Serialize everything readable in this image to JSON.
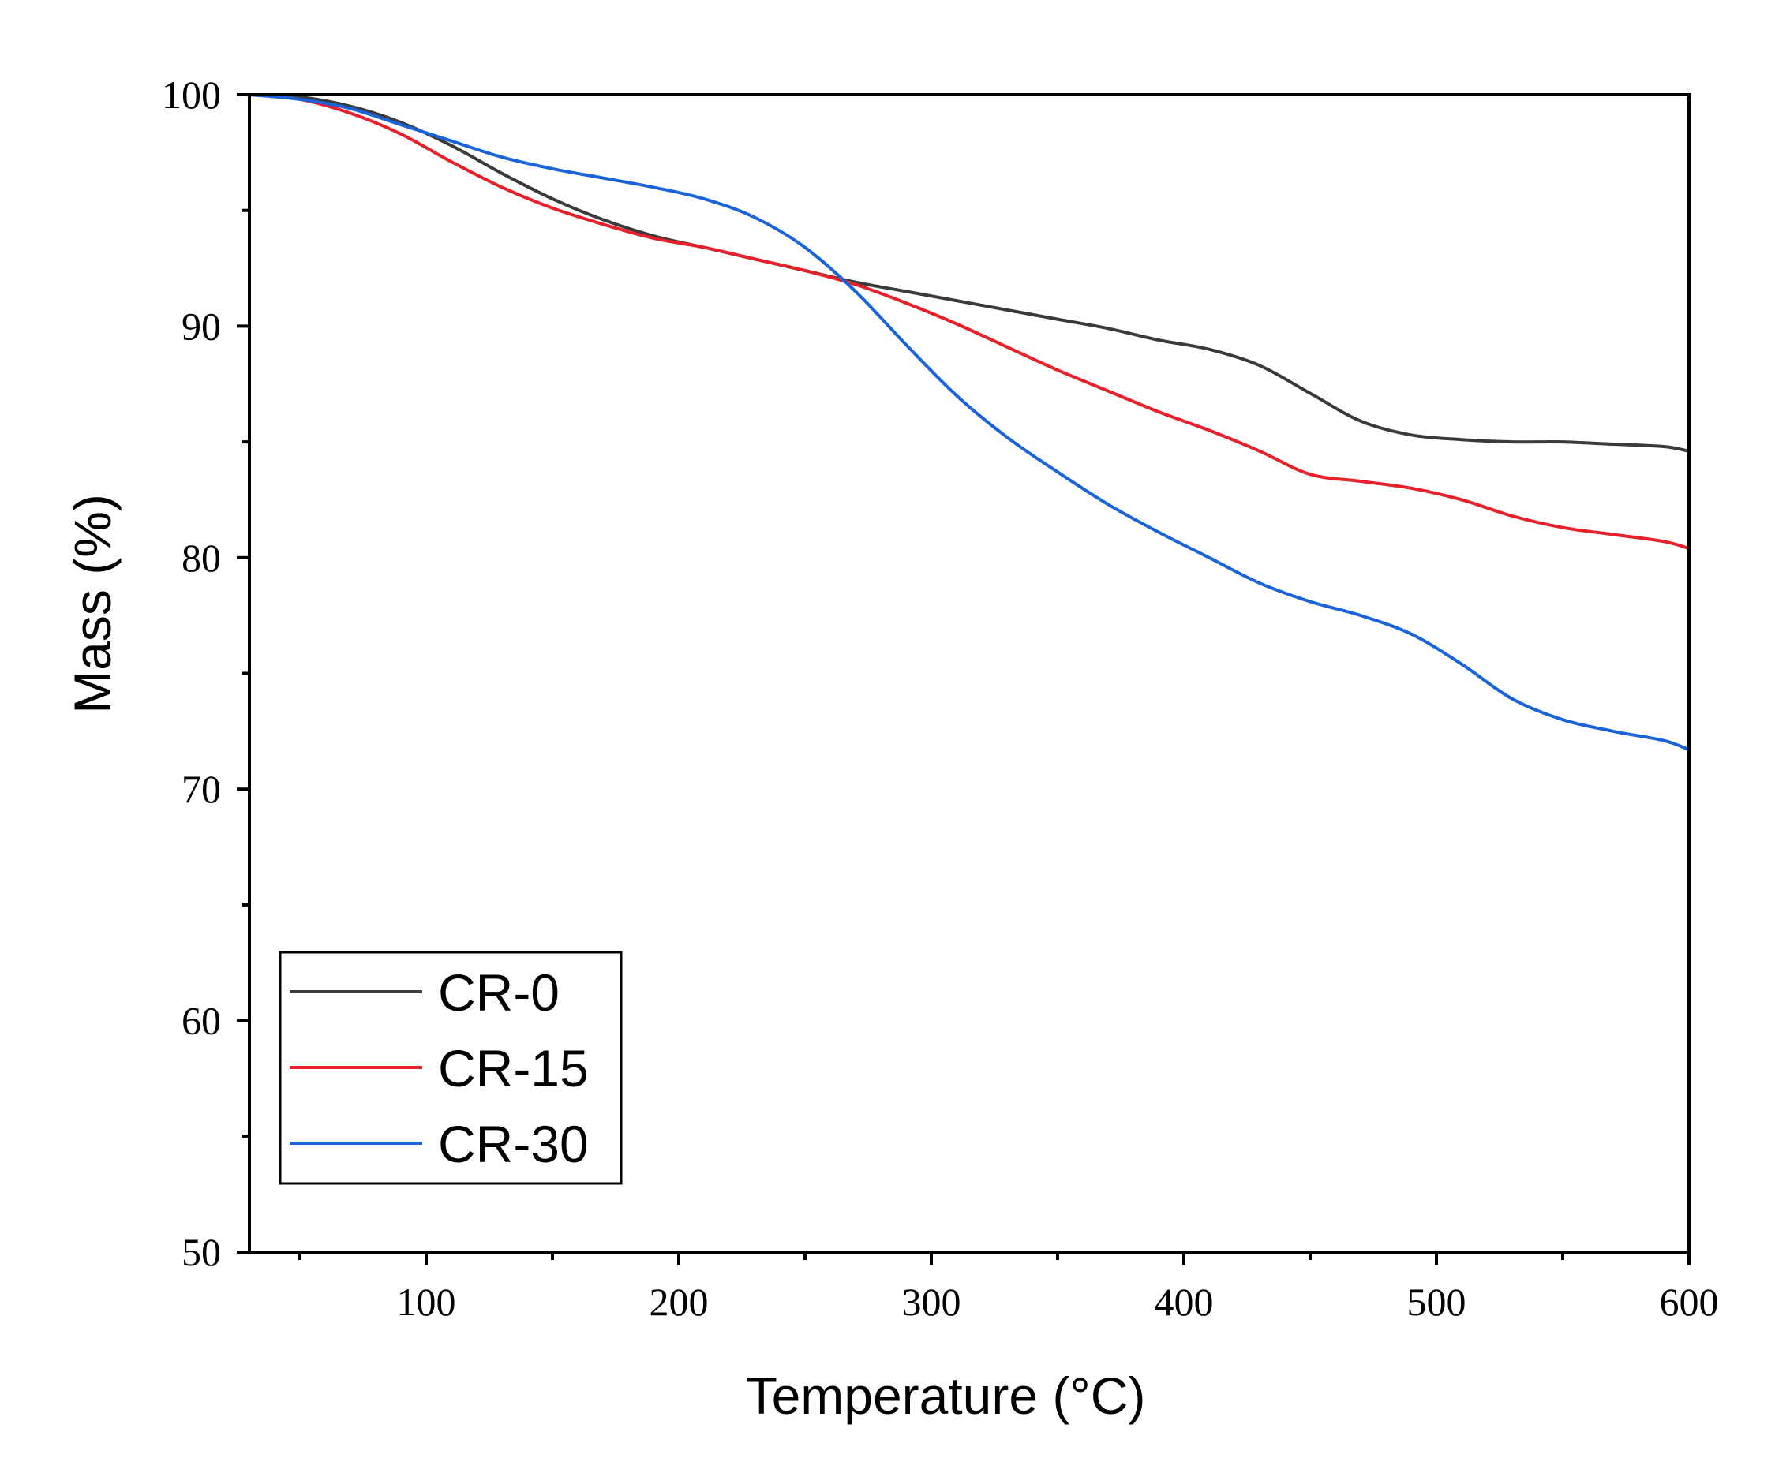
{
  "chart_data": {
    "type": "line",
    "title": "",
    "xlabel": "Temperature (°C)",
    "ylabel": "Mass (%)",
    "xlim": [
      30,
      600
    ],
    "ylim": [
      50,
      100
    ],
    "x_ticks": [
      100,
      200,
      300,
      400,
      500,
      600
    ],
    "x_minor_ticks": [
      50,
      150,
      250,
      350,
      450,
      550
    ],
    "x_tick_labels": [
      "100",
      "200",
      "300",
      "400",
      "500",
      "600"
    ],
    "y_ticks": [
      50,
      60,
      70,
      80,
      90,
      100
    ],
    "y_minor_ticks": [
      55,
      65,
      75,
      85,
      95
    ],
    "y_tick_labels": [
      "50",
      "60",
      "70",
      "80",
      "90",
      "100"
    ],
    "grid": false,
    "legend_position": "bottom-left",
    "series": [
      {
        "name": "CR-0",
        "color": "#3a3a3a",
        "x": [
          30,
          50,
          70,
          90,
          110,
          130,
          150,
          170,
          190,
          210,
          230,
          250,
          270,
          290,
          310,
          330,
          350,
          370,
          390,
          410,
          430,
          450,
          470,
          490,
          510,
          530,
          550,
          570,
          590,
          600
        ],
        "y": [
          100,
          99.9,
          99.5,
          98.8,
          97.8,
          96.6,
          95.5,
          94.6,
          93.9,
          93.4,
          92.9,
          92.4,
          91.9,
          91.5,
          91.1,
          90.7,
          90.3,
          89.9,
          89.4,
          89.0,
          88.3,
          87.1,
          85.9,
          85.3,
          85.1,
          85.0,
          85.0,
          84.9,
          84.8,
          84.6
        ]
      },
      {
        "name": "CR-15",
        "color": "#e8202a",
        "x": [
          30,
          50,
          70,
          90,
          110,
          130,
          150,
          170,
          190,
          210,
          230,
          250,
          270,
          290,
          310,
          330,
          350,
          370,
          390,
          410,
          430,
          450,
          470,
          490,
          510,
          530,
          550,
          570,
          590,
          600
        ],
        "y": [
          100,
          99.8,
          99.2,
          98.3,
          97.1,
          96.0,
          95.1,
          94.4,
          93.8,
          93.4,
          92.9,
          92.4,
          91.8,
          91.0,
          90.1,
          89.1,
          88.1,
          87.2,
          86.3,
          85.5,
          84.6,
          83.6,
          83.3,
          83.0,
          82.5,
          81.8,
          81.3,
          81.0,
          80.7,
          80.4
        ]
      },
      {
        "name": "CR-30",
        "color": "#1a63d8",
        "x": [
          30,
          50,
          70,
          90,
          110,
          130,
          150,
          170,
          190,
          210,
          230,
          250,
          270,
          290,
          310,
          330,
          350,
          370,
          390,
          410,
          430,
          450,
          470,
          490,
          510,
          530,
          550,
          570,
          590,
          600
        ],
        "y": [
          100,
          99.8,
          99.4,
          98.7,
          98.0,
          97.3,
          96.8,
          96.4,
          96.0,
          95.5,
          94.7,
          93.4,
          91.5,
          89.2,
          87.0,
          85.2,
          83.7,
          82.3,
          81.1,
          80.0,
          78.9,
          78.1,
          77.5,
          76.7,
          75.4,
          73.9,
          73.0,
          72.5,
          72.1,
          71.7
        ]
      }
    ]
  }
}
